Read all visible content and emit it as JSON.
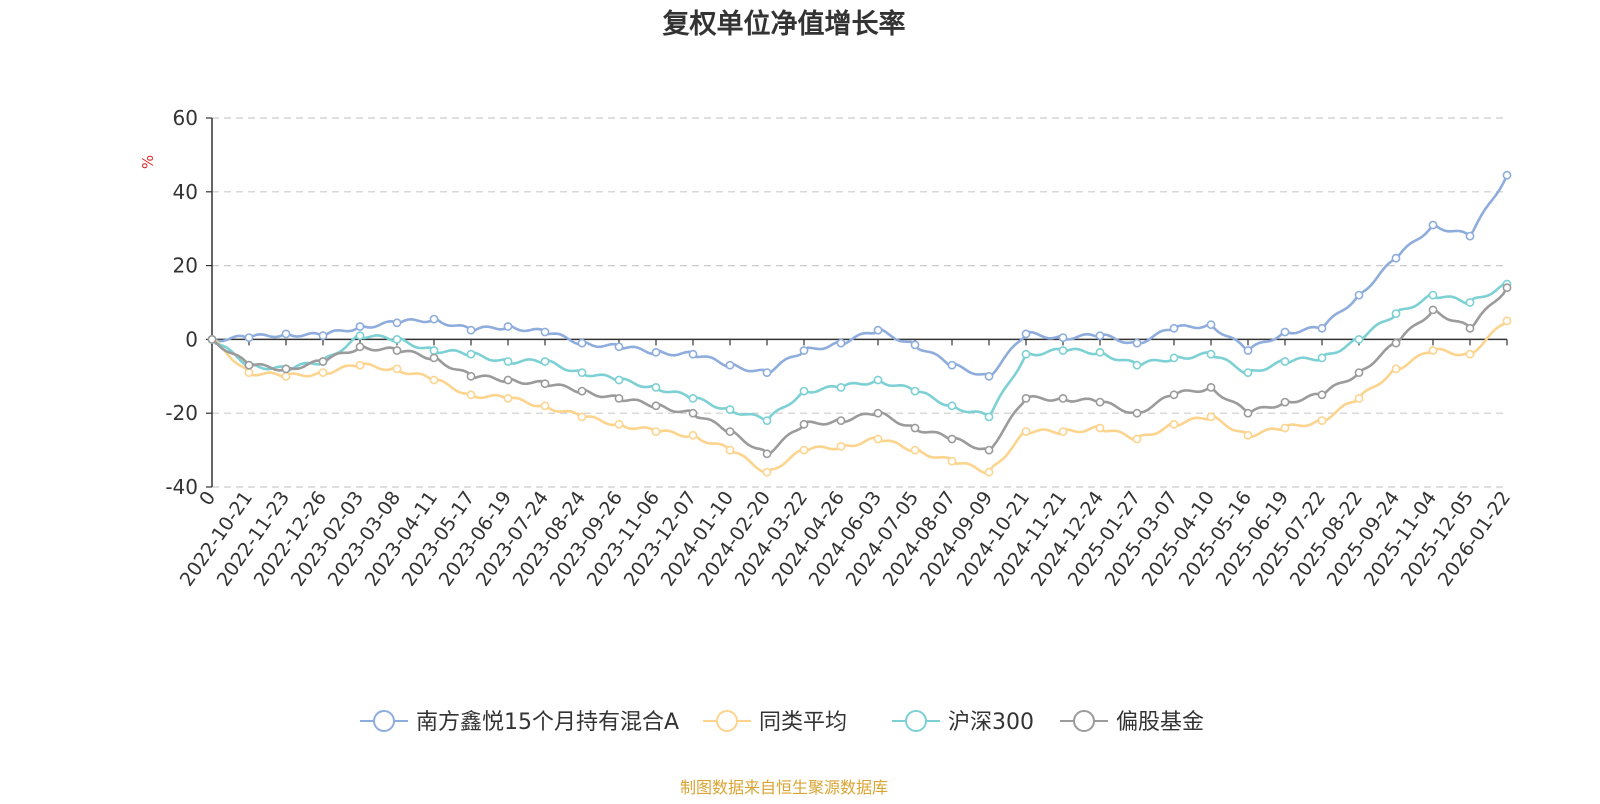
{
  "chart_data": {
    "type": "line",
    "title": "复权单位净值增长率",
    "ylabel": "%",
    "xlabel": "",
    "ylim": [
      -40,
      60
    ],
    "yticks": [
      -40,
      -20,
      0,
      20,
      40,
      60
    ],
    "grid": true,
    "legend_position": "bottom-center",
    "categories": [
      "0",
      "2022-10-21",
      "2022-11-23",
      "2022-12-26",
      "2023-02-03",
      "2023-03-08",
      "2023-04-11",
      "2023-05-17",
      "2023-06-19",
      "2023-07-24",
      "2023-08-24",
      "2023-09-26",
      "2023-11-06",
      "2023-12-07",
      "2024-01-10",
      "2024-02-20",
      "2024-03-22",
      "2024-04-26",
      "2024-06-03",
      "2024-07-05",
      "2024-08-07",
      "2024-09-09",
      "2024-10-21",
      "2024-11-21",
      "2024-12-24",
      "2025-01-27",
      "2025-03-07",
      "2025-04-10",
      "2025-05-16",
      "2025-06-19",
      "2025-07-22",
      "2025-08-22",
      "2025-09-24",
      "2025-11-04",
      "2025-12-05",
      "2026-01-22"
    ],
    "series": [
      {
        "name": "南方鑫悦15个月持有混合A",
        "color": "#8eaddd",
        "values": [
          0,
          0.5,
          1.5,
          1.0,
          3.5,
          4.5,
          5.5,
          2.5,
          3.5,
          2.0,
          -1.0,
          -2.0,
          -3.5,
          -4.0,
          -7.0,
          -9.0,
          -3.0,
          -1.0,
          2.5,
          -1.5,
          -7.0,
          -10.0,
          1.5,
          0.5,
          1.0,
          -1.0,
          3.0,
          4.0,
          -3.0,
          2.0,
          3.0,
          12.0,
          22.0,
          31.0,
          28.0,
          44.5
        ]
      },
      {
        "name": "同类平均",
        "color": "#fcd48e",
        "values": [
          0,
          -9.0,
          -10.0,
          -9.0,
          -7.0,
          -8.0,
          -11.0,
          -15.0,
          -16.0,
          -18.0,
          -21.0,
          -23.0,
          -25.0,
          -26.0,
          -30.0,
          -36.0,
          -30.0,
          -29.0,
          -27.0,
          -30.0,
          -33.0,
          -36.0,
          -25.0,
          -25.0,
          -24.0,
          -27.0,
          -23.0,
          -21.0,
          -26.0,
          -24.0,
          -22.0,
          -16.0,
          -8.0,
          -3.0,
          -4.0,
          5.0
        ]
      },
      {
        "name": "沪深300",
        "color": "#7dd0d4",
        "values": [
          0,
          -7.0,
          -8.0,
          -6.0,
          1.0,
          0.0,
          -3.0,
          -4.0,
          -6.0,
          -6.0,
          -9.0,
          -11.0,
          -13.0,
          -16.0,
          -19.0,
          -22.0,
          -14.0,
          -13.0,
          -11.0,
          -14.0,
          -18.0,
          -21.0,
          -4.0,
          -3.0,
          -3.5,
          -7.0,
          -5.0,
          -4.0,
          -9.0,
          -6.0,
          -5.0,
          0.0,
          7.0,
          12.0,
          10.0,
          15.0
        ]
      },
      {
        "name": "偏股基金",
        "color": "#9b9b9b",
        "values": [
          0,
          -7.0,
          -8.0,
          -6.0,
          -2.0,
          -3.0,
          -5.0,
          -10.0,
          -11.0,
          -12.0,
          -14.0,
          -16.0,
          -18.0,
          -20.0,
          -25.0,
          -31.0,
          -23.0,
          -22.0,
          -20.0,
          -24.0,
          -27.0,
          -30.0,
          -16.0,
          -16.0,
          -17.0,
          -20.0,
          -15.0,
          -13.0,
          -20.0,
          -17.0,
          -15.0,
          -9.0,
          -1.0,
          8.0,
          3.0,
          14.0
        ]
      }
    ]
  },
  "source_note": "制图数据来自恒生聚源数据库"
}
